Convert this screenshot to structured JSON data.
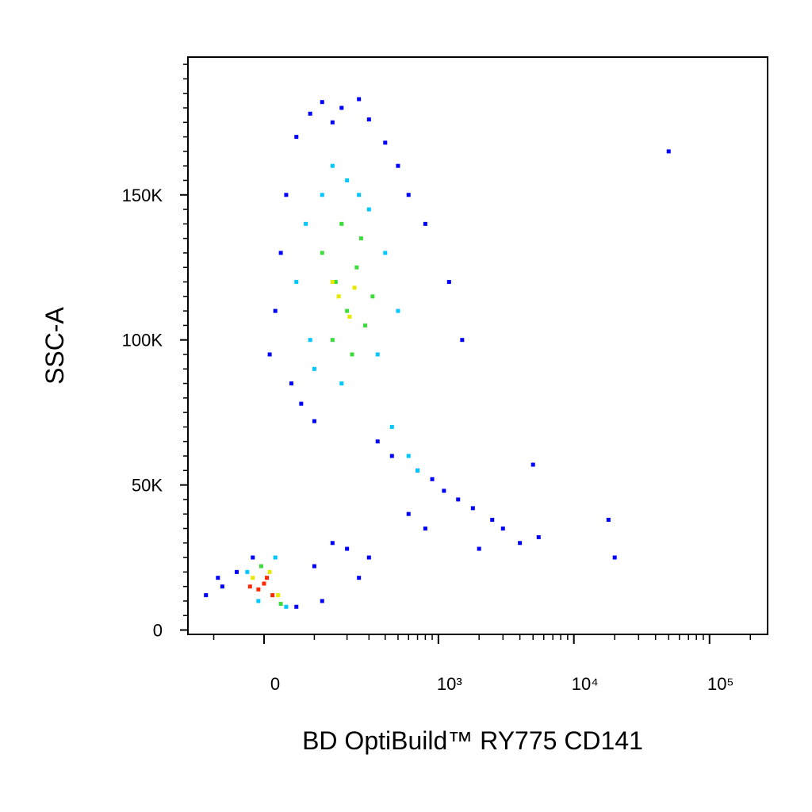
{
  "chart_data": {
    "type": "scatter",
    "xlabel": "BD OptiBuild™ RY775 CD141",
    "ylabel": "SSC-A",
    "xscale": "biexponential",
    "xlim": [
      -175,
      268000
    ],
    "ylim": [
      -1500,
      197500
    ],
    "xticks": [
      0,
      {
        "value": 1000,
        "label": "10³"
      },
      {
        "value": 10000,
        "label": "10⁴"
      },
      {
        "value": 100000,
        "label": "10⁵"
      }
    ],
    "yticks": [
      0,
      {
        "value": 50000,
        "label": "50K"
      },
      {
        "value": 100000,
        "label": "100K"
      },
      {
        "value": 150000,
        "label": "150K"
      }
    ],
    "xminorticks": [
      -100,
      100,
      200,
      300,
      400,
      500,
      600,
      700,
      800,
      900,
      2000,
      3000,
      4000,
      5000,
      6000,
      7000,
      8000,
      9000,
      20000,
      30000,
      40000,
      50000,
      60000,
      70000,
      80000,
      90000,
      200000
    ],
    "yminorticks": [
      5000,
      10000,
      15000,
      20000,
      25000,
      30000,
      35000,
      40000,
      45000,
      55000,
      60000,
      65000,
      70000,
      75000,
      80000,
      85000,
      90000,
      95000,
      105000,
      110000,
      115000,
      120000,
      125000,
      130000,
      135000,
      140000,
      145000,
      155000,
      160000,
      165000,
      170000,
      175000,
      180000,
      185000,
      190000,
      195000
    ],
    "series": [
      {
        "color": "#0000ff",
        "x": [
          40,
          60,
          90,
          120,
          150,
          180,
          250,
          300,
          400,
          500,
          600,
          800,
          1200,
          1500,
          30,
          20,
          10,
          50,
          70,
          100,
          350,
          450,
          700,
          900,
          1100,
          1400,
          1800,
          2500,
          3000,
          4000,
          5500,
          600,
          800,
          2000,
          -50,
          -80,
          -20,
          150,
          200,
          300,
          -120,
          -90,
          60,
          100,
          120,
          250,
          5000,
          20000,
          50000,
          18000
        ],
        "values": [
          150000,
          170000,
          178000,
          182000,
          175000,
          180000,
          183000,
          176000,
          168000,
          160000,
          150000,
          140000,
          120000,
          100000,
          130000,
          110000,
          95000,
          85000,
          78000,
          72000,
          65000,
          60000,
          55000,
          52000,
          48000,
          45000,
          42000,
          38000,
          35000,
          30000,
          32000,
          40000,
          35000,
          28000,
          20000,
          15000,
          25000,
          30000,
          28000,
          25000,
          12000,
          18000,
          8000,
          22000,
          10000,
          18000,
          57000,
          25000,
          165000,
          38000
        ]
      },
      {
        "color": "#00c8ff",
        "x": [
          80,
          120,
          150,
          200,
          250,
          300,
          400,
          500,
          100,
          180,
          350,
          60,
          90,
          600,
          700,
          -30,
          -10,
          20,
          40,
          450
        ],
        "values": [
          140000,
          150000,
          160000,
          155000,
          150000,
          145000,
          130000,
          110000,
          90000,
          85000,
          95000,
          120000,
          100000,
          60000,
          55000,
          20000,
          10000,
          25000,
          8000,
          70000
        ]
      },
      {
        "color": "#3cdc3c",
        "x": [
          120,
          160,
          200,
          240,
          280,
          150,
          220,
          320,
          180,
          260,
          -5,
          30
        ],
        "values": [
          130000,
          120000,
          110000,
          125000,
          105000,
          100000,
          95000,
          115000,
          140000,
          135000,
          22000,
          9000
        ]
      },
      {
        "color": "#e8e800",
        "x": [
          170,
          210,
          150,
          230,
          -20,
          25,
          10
        ],
        "values": [
          115000,
          108000,
          120000,
          118000,
          18000,
          12000,
          20000
        ]
      },
      {
        "color": "#ff2800",
        "x": [
          -10,
          0,
          15,
          5,
          -25
        ],
        "values": [
          14000,
          16000,
          12000,
          18000,
          15000
        ]
      }
    ]
  }
}
